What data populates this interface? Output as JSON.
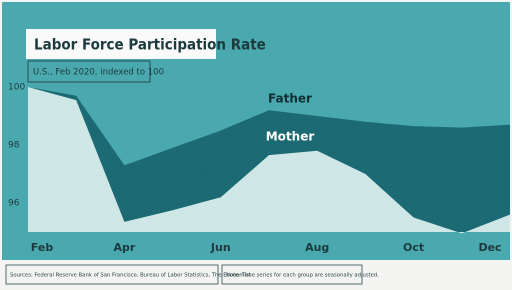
{
  "chart_data": {
    "type": "area",
    "title": "Labor Force Participation Rate",
    "subtitle": "U.S., Feb 2020, indexed to 100",
    "categories": [
      "Feb",
      null,
      "Apr",
      null,
      "Jun",
      null,
      "Aug",
      null,
      "Oct",
      null,
      "Dec"
    ],
    "series": [
      {
        "name": "Father",
        "color": "#1f6e77",
        "values": [
          100,
          99.7,
          97.3,
          97.9,
          98.5,
          99.2,
          99.0,
          98.8,
          98.65,
          98.6,
          98.7
        ]
      },
      {
        "name": "Mother",
        "color": "#c9e4e3",
        "values": [
          100,
          99.55,
          95.35,
          95.75,
          96.2,
          97.65,
          97.8,
          97.0,
          95.5,
          94.95,
          95.6
        ]
      }
    ],
    "ylim": [
      95,
      100
    ],
    "yticks": [
      100,
      98,
      96
    ],
    "source": "Sources: Federal Reserve Bank of San Francisco, Bureau of Labor Statistics, The Economist",
    "note": "Note: Time series for each group are seasonally adjusted."
  }
}
